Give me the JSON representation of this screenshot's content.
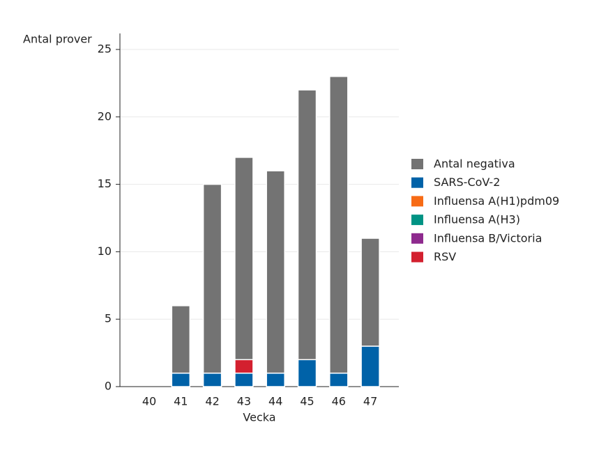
{
  "chart_data": {
    "type": "stacked_bar",
    "y_label": "Antal prover",
    "x_label": "Vecka",
    "categories": [
      "40",
      "41",
      "42",
      "43",
      "44",
      "45",
      "46",
      "47"
    ],
    "series": [
      {
        "name": "Antal negativa",
        "color": "#737373",
        "values": [
          0,
          5,
          14,
          15,
          15,
          20,
          22,
          8
        ]
      },
      {
        "name": "SARS-CoV-2",
        "color": "#0062a8",
        "values": [
          0,
          1,
          1,
          1,
          1,
          2,
          1,
          3
        ]
      },
      {
        "name": "Influensa A(H1)pdm09",
        "color": "#f76b15",
        "values": [
          0,
          0,
          0,
          0,
          0,
          0,
          0,
          0
        ]
      },
      {
        "name": "Influensa A(H3)",
        "color": "#009384",
        "values": [
          0,
          0,
          0,
          0,
          0,
          0,
          0,
          0
        ]
      },
      {
        "name": "Influensa B/Victoria",
        "color": "#8e2a8e",
        "values": [
          0,
          0,
          0,
          0,
          0,
          0,
          0,
          0
        ]
      },
      {
        "name": "RSV",
        "color": "#d3202f",
        "values": [
          0,
          0,
          0,
          1,
          0,
          0,
          0,
          0
        ]
      }
    ],
    "ylim": [
      0,
      25
    ],
    "yticks": [
      0,
      5,
      10,
      15,
      20,
      25
    ],
    "grid": true
  }
}
